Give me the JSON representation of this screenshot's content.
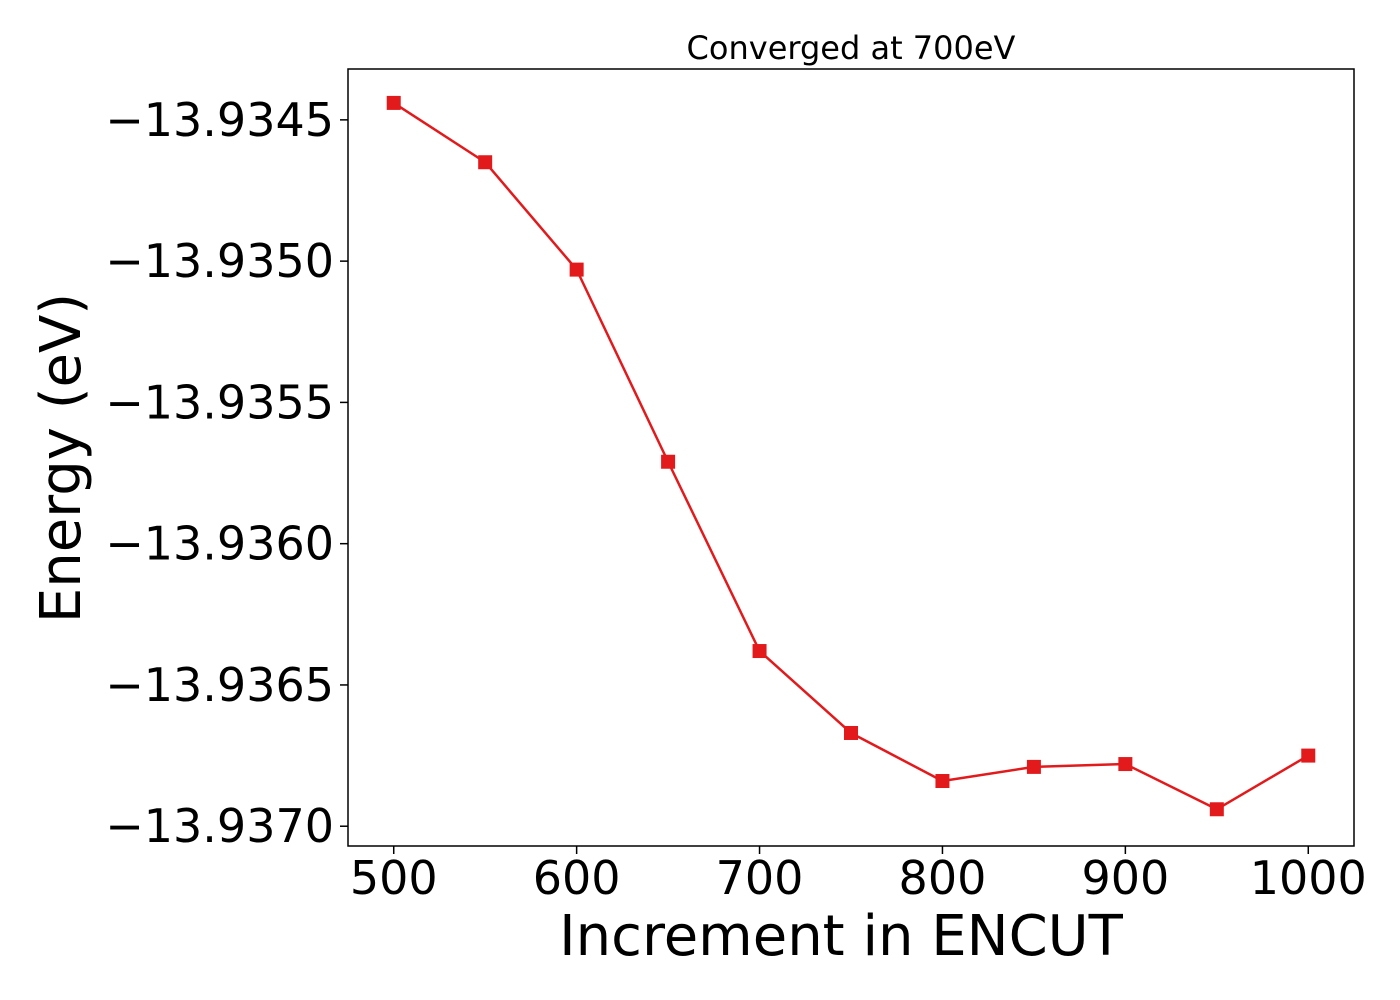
{
  "chart_data": {
    "type": "line",
    "title": "Converged at 700eV",
    "xlabel": "Increment in ENCUT",
    "ylabel": "Energy (eV)",
    "x": [
      500,
      550,
      600,
      650,
      700,
      750,
      800,
      850,
      900,
      950,
      1000
    ],
    "series": [
      {
        "values": [
          -13.93444,
          -13.93465,
          -13.93503,
          -13.93571,
          -13.93638,
          -13.93667,
          -13.93684,
          -13.93679,
          -13.93678,
          -13.93694,
          -13.93675
        ],
        "color": "#e31a1c",
        "marker": "square"
      }
    ],
    "xlim": [
      475,
      1025
    ],
    "ylim": [
      -13.93707,
      -13.93432
    ],
    "xticks": [
      500,
      600,
      700,
      800,
      900,
      1000
    ],
    "xtick_labels": [
      "500",
      "600",
      "700",
      "800",
      "900",
      "1000"
    ],
    "yticks": [
      -13.9345,
      -13.935,
      -13.9355,
      -13.936,
      -13.9365,
      -13.937
    ],
    "ytick_labels": [
      "−13.9345",
      "−13.9350",
      "−13.9355",
      "−13.9360",
      "−13.9365",
      "−13.9370"
    ],
    "grid": false,
    "legend": "none"
  }
}
